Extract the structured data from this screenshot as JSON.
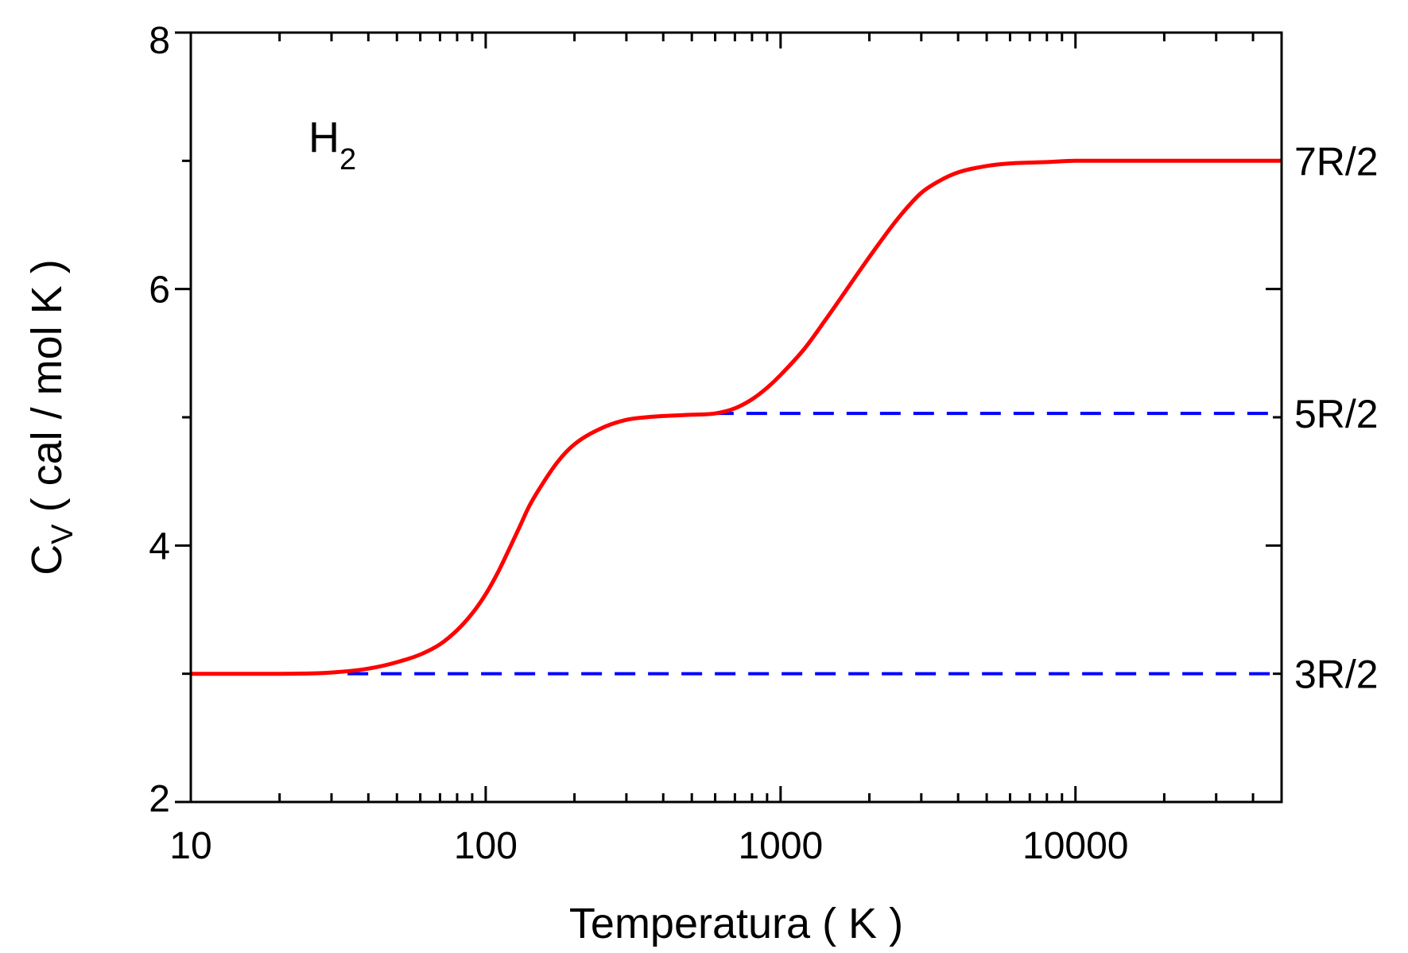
{
  "chart_data": {
    "type": "line",
    "title": "",
    "annotation": {
      "base": "H",
      "subscript": "2"
    },
    "xlabel": "Temperatura ( K )",
    "ylabel": {
      "symbol": "C",
      "subscript": "V",
      "unit": " ( cal / mol K )"
    },
    "xscale": "log",
    "xlim": [
      10,
      50000
    ],
    "ylim": [
      2,
      8
    ],
    "x_ticks": [
      {
        "value": 10,
        "label": "10"
      },
      {
        "value": 100,
        "label": "100"
      },
      {
        "value": 1000,
        "label": "1000"
      },
      {
        "value": 10000,
        "label": "10000"
      }
    ],
    "y_ticks": [
      {
        "value": 2,
        "label": "2"
      },
      {
        "value": 4,
        "label": "4"
      },
      {
        "value": 6,
        "label": "6"
      },
      {
        "value": 8,
        "label": "8"
      }
    ],
    "grid": false,
    "series": [
      {
        "color": "#ff0000",
        "style": "solid",
        "x": [
          10,
          20,
          30,
          40,
          50,
          60,
          70,
          80,
          90,
          100,
          110,
          120,
          130,
          140,
          150,
          175,
          200,
          250,
          300,
          350,
          400,
          500,
          600,
          700,
          800,
          900,
          1000,
          1200,
          1400,
          1600,
          1800,
          2000,
          2500,
          3000,
          3500,
          4000,
          5000,
          6000,
          8000,
          10000,
          20000,
          50000
        ],
        "y": [
          3.0,
          3.0,
          3.01,
          3.04,
          3.09,
          3.15,
          3.23,
          3.34,
          3.47,
          3.62,
          3.79,
          3.97,
          4.14,
          4.3,
          4.42,
          4.65,
          4.79,
          4.92,
          4.98,
          5.0,
          5.01,
          5.02,
          5.03,
          5.07,
          5.14,
          5.23,
          5.33,
          5.53,
          5.74,
          5.93,
          6.1,
          6.25,
          6.55,
          6.75,
          6.85,
          6.91,
          6.96,
          6.98,
          6.99,
          7.0,
          7.0,
          7.0
        ]
      }
    ],
    "reference_lines": [
      {
        "label": "7R/2",
        "y": 7.0,
        "x_start": 50000,
        "x_end": 50000,
        "color": "#ff0000",
        "style": "none"
      },
      {
        "label": "5R/2",
        "y": 5.03,
        "x_start": 590,
        "x_end": 50000,
        "color": "#0000ff",
        "style": "dashed"
      },
      {
        "label": "3R/2",
        "y": 3.0,
        "x_start": 34,
        "x_end": 50000,
        "color": "#0000ff",
        "style": "dashed"
      }
    ]
  }
}
